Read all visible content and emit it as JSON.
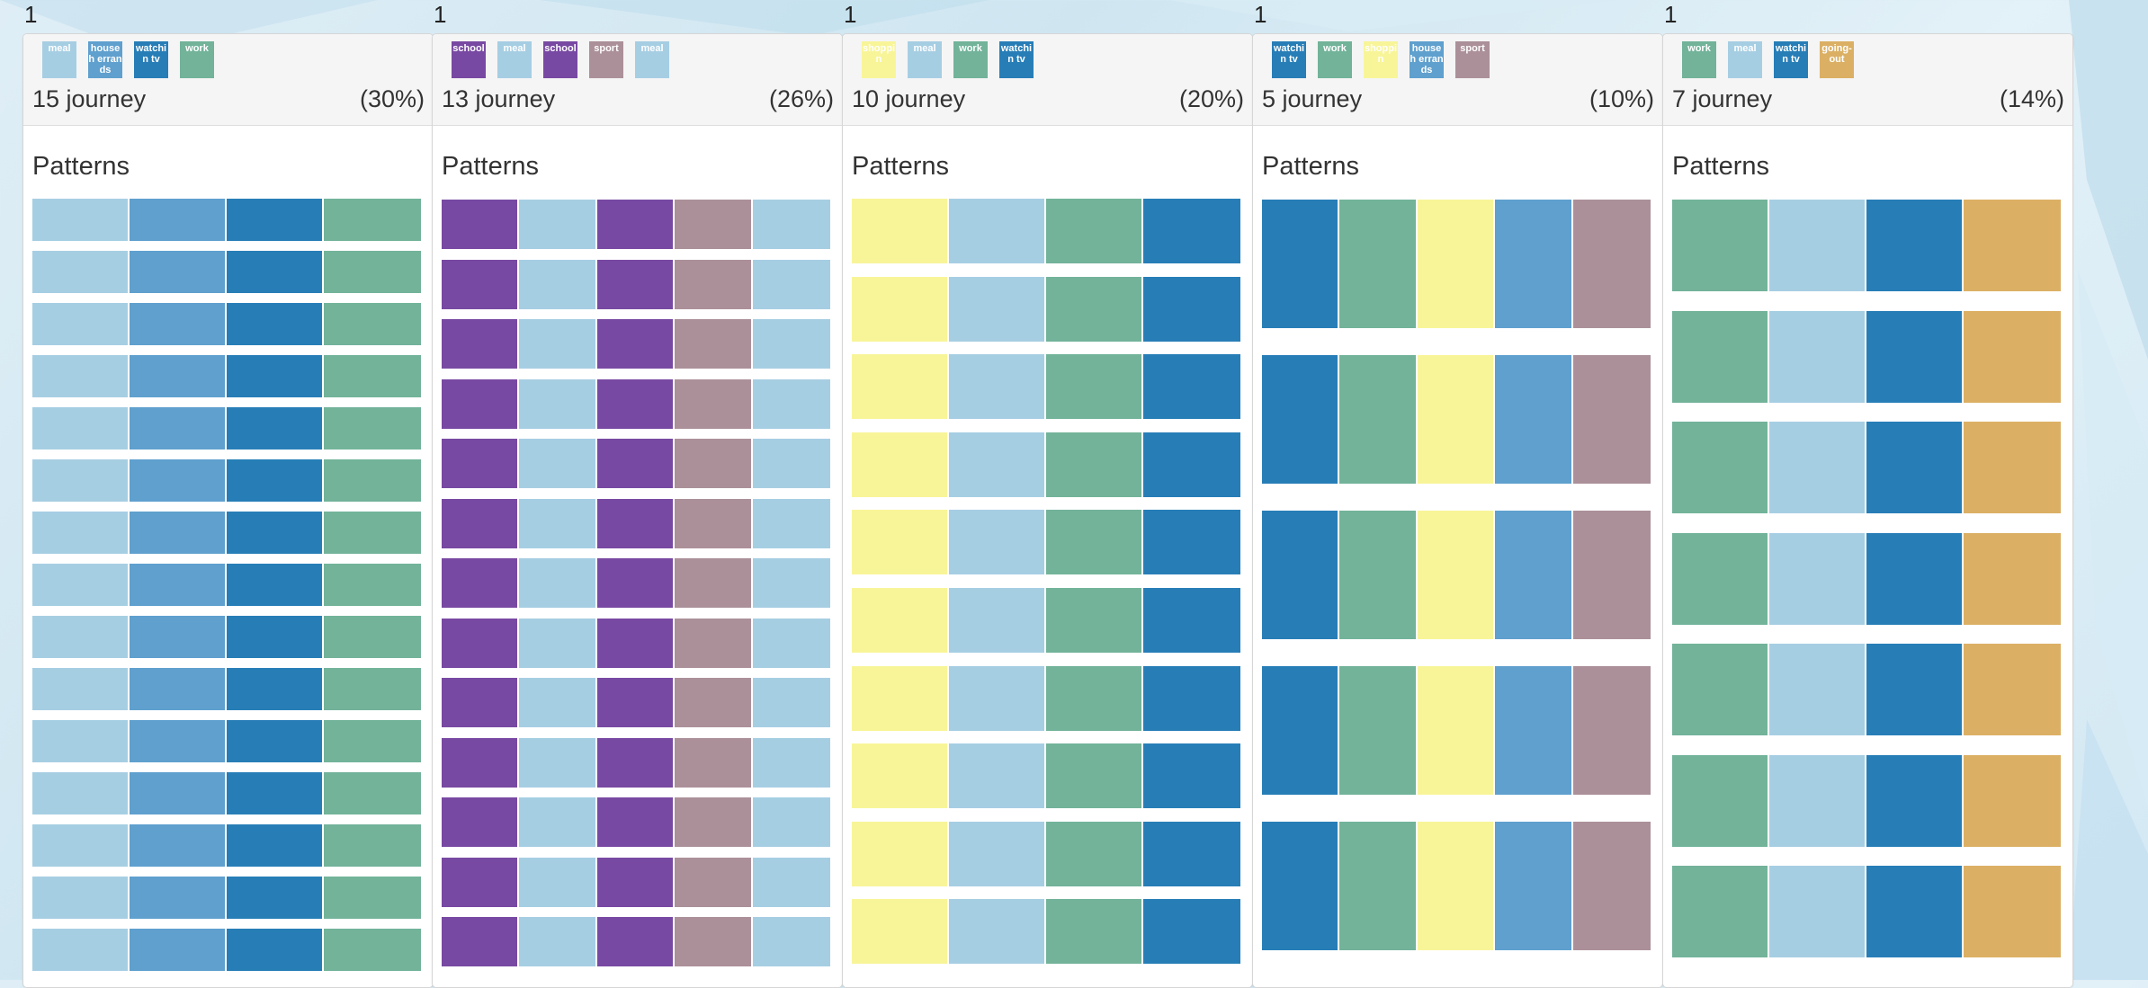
{
  "colors": {
    "meal": "#a6cee3",
    "household-errands": "#5fa0ce",
    "watching-tv": "#277eb7",
    "work": "#72b39a",
    "school": "#7849a2",
    "sport": "#ab9099",
    "shopping": "#f8f599",
    "going-out": "#dbb064"
  },
  "clusters": [
    {
      "number": "1",
      "count_label": "15 journey",
      "percent_label": "(30%)",
      "patterns_title": "Patterns",
      "legend": [
        {
          "label": "meal",
          "activity": "meal"
        },
        {
          "label": "househ errands",
          "activity": "household-errands"
        },
        {
          "label": "watchin tv",
          "activity": "watching-tv"
        },
        {
          "label": "work",
          "activity": "work"
        }
      ],
      "pattern_count": 15,
      "pattern": [
        "meal",
        "household-errands",
        "watching-tv",
        "work"
      ]
    },
    {
      "number": "1",
      "count_label": "13 journey",
      "percent_label": "(26%)",
      "patterns_title": "Patterns",
      "legend": [
        {
          "label": "school",
          "activity": "school"
        },
        {
          "label": "meal",
          "activity": "meal"
        },
        {
          "label": "school",
          "activity": "school"
        },
        {
          "label": "sport",
          "activity": "sport"
        },
        {
          "label": "meal",
          "activity": "meal"
        }
      ],
      "pattern_count": 13,
      "pattern": [
        "school",
        "meal",
        "school",
        "sport",
        "meal"
      ]
    },
    {
      "number": "1",
      "count_label": "10 journey",
      "percent_label": "(20%)",
      "patterns_title": "Patterns",
      "legend": [
        {
          "label": "shoppin",
          "activity": "shopping"
        },
        {
          "label": "meal",
          "activity": "meal"
        },
        {
          "label": "work",
          "activity": "work"
        },
        {
          "label": "watchin tv",
          "activity": "watching-tv"
        }
      ],
      "pattern_count": 10,
      "pattern": [
        "shopping",
        "meal",
        "work",
        "watching-tv"
      ]
    },
    {
      "number": "1",
      "count_label": "5 journey",
      "percent_label": "(10%)",
      "patterns_title": "Patterns",
      "legend": [
        {
          "label": "watchin tv",
          "activity": "watching-tv"
        },
        {
          "label": "work",
          "activity": "work"
        },
        {
          "label": "shoppin",
          "activity": "shopping"
        },
        {
          "label": "househ errands",
          "activity": "household-errands"
        },
        {
          "label": "sport",
          "activity": "sport"
        }
      ],
      "pattern_count": 5,
      "pattern": [
        "watching-tv",
        "work",
        "shopping",
        "household-errands",
        "sport"
      ]
    },
    {
      "number": "1",
      "count_label": "7 journey",
      "percent_label": "(14%)",
      "patterns_title": "Patterns",
      "legend": [
        {
          "label": "work",
          "activity": "work"
        },
        {
          "label": "meal",
          "activity": "meal"
        },
        {
          "label": "watchin tv",
          "activity": "watching-tv"
        },
        {
          "label": "going-out",
          "activity": "going-out"
        }
      ],
      "pattern_count": 7,
      "pattern": [
        "work",
        "meal",
        "watching-tv",
        "going-out"
      ]
    }
  ]
}
